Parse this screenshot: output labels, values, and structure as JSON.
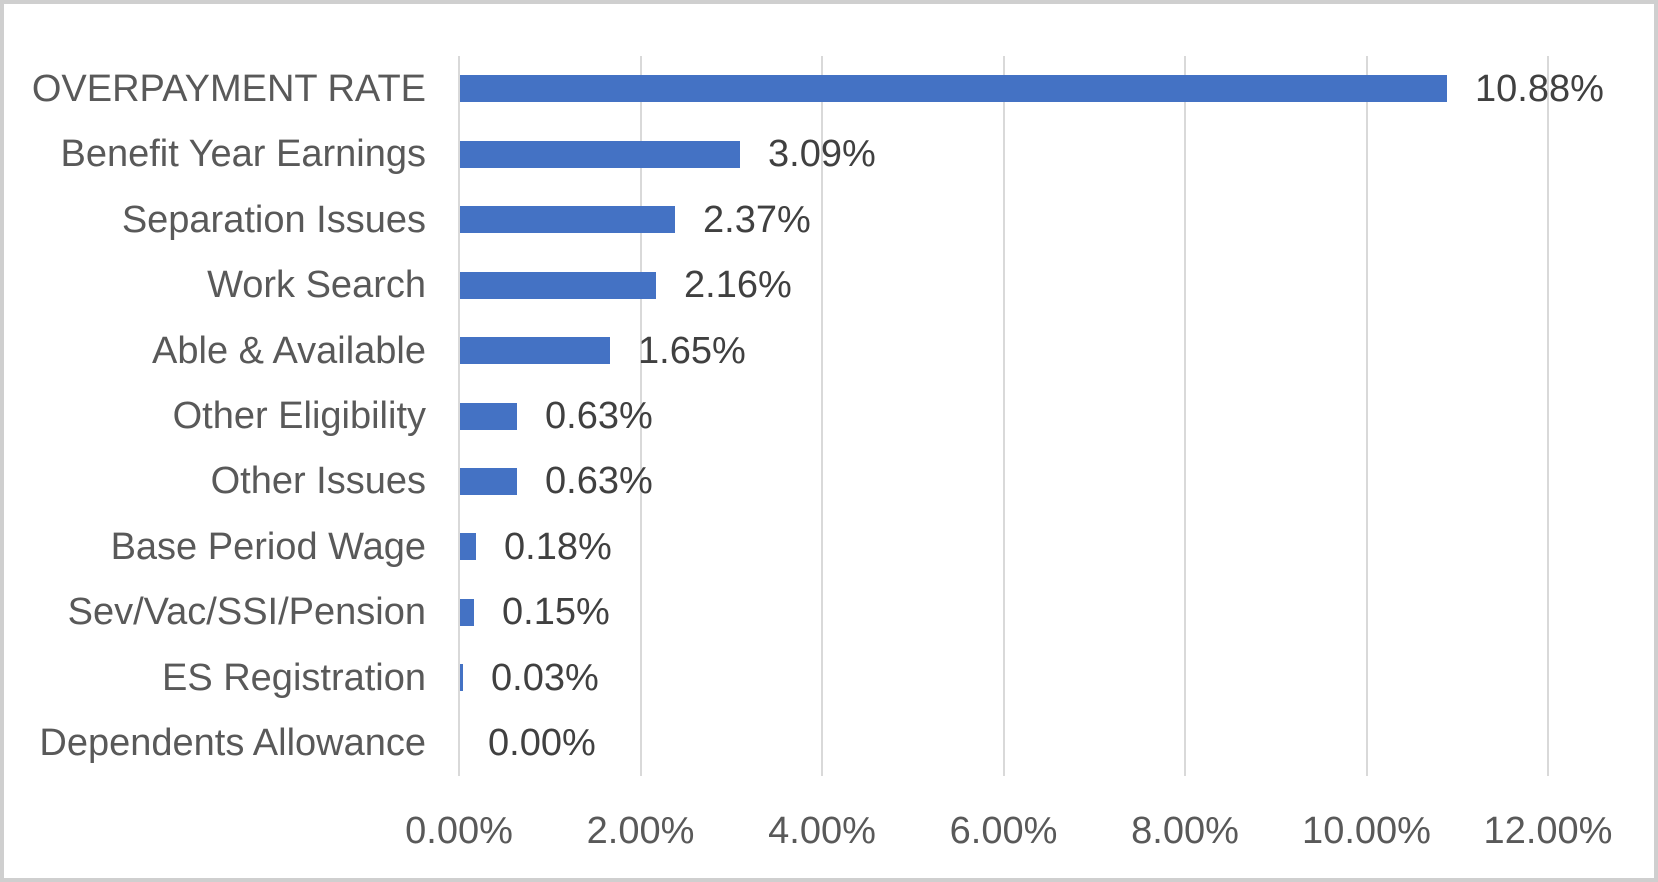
{
  "chart_data": {
    "type": "bar",
    "orientation": "horizontal",
    "title": "",
    "categories": [
      "OVERPAYMENT RATE",
      "Benefit Year Earnings",
      "Separation Issues",
      "Work Search",
      "Able & Available",
      "Other Eligibility",
      "Other Issues",
      "Base Period Wage",
      "Sev/Vac/SSI/Pension",
      "ES Registration",
      "Dependents Allowance"
    ],
    "values": [
      10.88,
      3.09,
      2.37,
      2.16,
      1.65,
      0.63,
      0.63,
      0.18,
      0.15,
      0.03,
      0.0
    ],
    "value_labels": [
      "10.88%",
      "3.09%",
      "2.37%",
      "2.16%",
      "1.65%",
      "0.63%",
      "0.63%",
      "0.18%",
      "0.15%",
      "0.03%",
      "0.00%"
    ],
    "x_axis": {
      "min": 0,
      "max": 12,
      "step": 2,
      "tick_labels": [
        "0.00%",
        "2.00%",
        "4.00%",
        "6.00%",
        "8.00%",
        "10.00%",
        "12.00%"
      ],
      "format": "percent"
    },
    "grid": "vertical-gridlines-on",
    "legend": "none",
    "colors": {
      "bar": "#4472C4",
      "category_text": "#595959",
      "data_label_text": "#404040",
      "axis_text": "#595959",
      "gridline": "#D9D9D9",
      "frame_border": "#CFCFCF",
      "background": "#FFFFFF"
    }
  }
}
